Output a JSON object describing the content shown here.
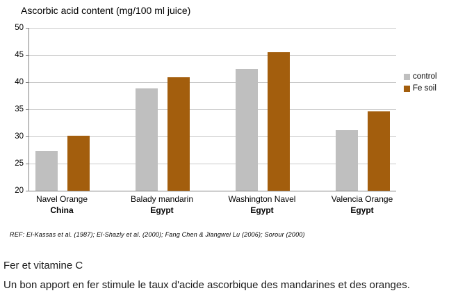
{
  "chart_data": {
    "type": "bar",
    "title": "Ascorbic acid content (mg/100 ml juice)",
    "categories": [
      {
        "variety": "Navel Orange",
        "country": "China"
      },
      {
        "variety": "Balady mandarin",
        "country": "Egypt"
      },
      {
        "variety": "Washington Navel",
        "country": "Egypt"
      },
      {
        "variety": "Valencia Orange",
        "country": "Egypt"
      }
    ],
    "series": [
      {
        "name": "control",
        "color": "#BFBFBF",
        "values": [
          27.3,
          38.8,
          42.4,
          31.2
        ]
      },
      {
        "name": "Fe soil",
        "color": "#A35E0D",
        "values": [
          30.1,
          40.9,
          45.5,
          34.6
        ]
      }
    ],
    "ylim": [
      20,
      50
    ],
    "y_ticks": [
      50,
      45,
      40,
      35,
      30,
      25,
      20
    ],
    "grid": true,
    "legend_position": "right",
    "gridline_color": "#C9C9C9",
    "axis_color": "#808080"
  },
  "reference": "REF: El-Kassas et al. (1987); El-Shazly et al. (2000); Fang Chen & Jiangwei Lu (2006); Sorour (2000)",
  "caption": {
    "heading": "Fer et vitamine C",
    "body": "Un bon apport en fer stimule le taux d'acide ascorbique des mandarines et des oranges."
  }
}
